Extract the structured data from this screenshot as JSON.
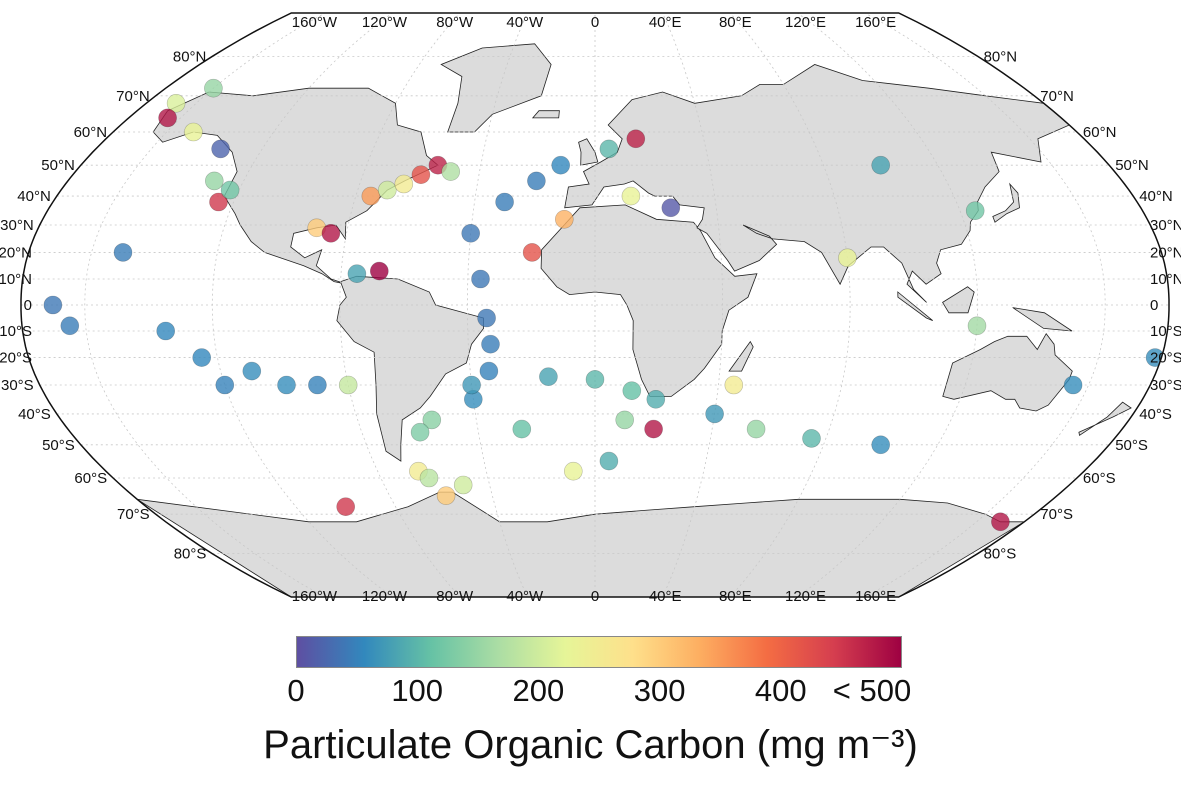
{
  "map": {
    "projection": "Robinson",
    "top_lon_labels": [
      "160°W",
      "120°W",
      "80°W",
      "40°W",
      "0",
      "40°E",
      "80°E",
      "120°E",
      "160°E"
    ],
    "bottom_lon_labels": [
      "160°W",
      "120°W",
      "80°W",
      "40°W",
      "0",
      "40°E",
      "80°E",
      "120°E",
      "160°E"
    ],
    "left_lat_labels": [
      "80°N",
      "70°N",
      "60°N",
      "50°N",
      "40°N",
      "30°N",
      "20°N",
      "10°N",
      "0",
      "10°S",
      "20°S",
      "30°S",
      "40°S",
      "50°S",
      "60°S",
      "70°S",
      "80°S"
    ],
    "right_lat_labels": [
      "80°N",
      "70°N",
      "60°N",
      "50°N",
      "40°N",
      "30°N",
      "20°N",
      "10°N",
      "0",
      "10°S",
      "20°S",
      "30°S",
      "40°S",
      "50°S",
      "60°S",
      "70°S",
      "80°S"
    ],
    "land_color": "#dcdcdc",
    "ocean_color": "#ffffff",
    "grid_color": "#c8c8c8",
    "observations": [
      {
        "lon": -40,
        "lat": 27,
        "poc": 40
      },
      {
        "lon": -30,
        "lat": 38,
        "poc": 45
      },
      {
        "lon": -20,
        "lat": 45,
        "poc": 45
      },
      {
        "lon": -12,
        "lat": 50,
        "poc": 55
      },
      {
        "lon": -36,
        "lat": 10,
        "poc": 40
      },
      {
        "lon": -34,
        "lat": -5,
        "poc": 40
      },
      {
        "lon": -33,
        "lat": -15,
        "poc": 45
      },
      {
        "lon": -34,
        "lat": -25,
        "poc": 50
      },
      {
        "lon": -40,
        "lat": -35,
        "poc": 60
      },
      {
        "lon": -55,
        "lat": -42,
        "poc": 140
      },
      {
        "lon": -60,
        "lat": -46,
        "poc": 130
      },
      {
        "lon": -65,
        "lat": -58,
        "poc": 250
      },
      {
        "lon": -62,
        "lat": -60,
        "poc": 180
      },
      {
        "lon": -15,
        "lat": -27,
        "poc": 80
      },
      {
        "lon": 0,
        "lat": -28,
        "poc": 100
      },
      {
        "lon": 12,
        "lat": -32,
        "poc": 110
      },
      {
        "lon": 20,
        "lat": -35,
        "poc": 90
      },
      {
        "lon": 10,
        "lat": -42,
        "poc": 150
      },
      {
        "lon": 5,
        "lat": -55,
        "poc": 90
      },
      {
        "lon": 40,
        "lat": -40,
        "poc": 70
      },
      {
        "lon": 55,
        "lat": -45,
        "poc": 150
      },
      {
        "lon": 75,
        "lat": -48,
        "poc": 100
      },
      {
        "lon": 100,
        "lat": -50,
        "poc": 60
      },
      {
        "lon": -150,
        "lat": 20,
        "poc": 45
      },
      {
        "lon": -170,
        "lat": 0,
        "poc": 40
      },
      {
        "lon": -165,
        "lat": -8,
        "poc": 45
      },
      {
        "lon": -120,
        "lat": -30,
        "poc": 50
      },
      {
        "lon": -100,
        "lat": -30,
        "poc": 60
      },
      {
        "lon": -90,
        "lat": -30,
        "poc": 50
      },
      {
        "lon": -80,
        "lat": -30,
        "poc": 190
      },
      {
        "lon": -125,
        "lat": -20,
        "poc": 55
      },
      {
        "lon": -130,
        "lat": 45,
        "poc": 150
      },
      {
        "lon": -125,
        "lat": 38,
        "poc": 450
      },
      {
        "lon": -123,
        "lat": 42,
        "poc": 120
      },
      {
        "lon": -90,
        "lat": 29,
        "poc": 300
      },
      {
        "lon": -85,
        "lat": 27,
        "poc": 480
      },
      {
        "lon": -75,
        "lat": 40,
        "poc": 350
      },
      {
        "lon": -70,
        "lat": 42,
        "poc": 200
      },
      {
        "lon": -60,
        "lat": 47,
        "poc": 420
      },
      {
        "lon": -55,
        "lat": 50,
        "poc": 470
      },
      {
        "lon": -50,
        "lat": 48,
        "poc": 170
      },
      {
        "lon": -65,
        "lat": 44,
        "poc": 250
      },
      {
        "lon": -168,
        "lat": 68,
        "poc": 210
      },
      {
        "lon": -160,
        "lat": 72,
        "poc": 150
      },
      {
        "lon": -165,
        "lat": 64,
        "poc": 480
      },
      {
        "lon": -150,
        "lat": 60,
        "poc": 230
      },
      {
        "lon": -135,
        "lat": 55,
        "poc": 20
      },
      {
        "lon": 5,
        "lat": 55,
        "poc": 100
      },
      {
        "lon": 15,
        "lat": 58,
        "poc": 470
      },
      {
        "lon": 12,
        "lat": 40,
        "poc": 230
      },
      {
        "lon": 25,
        "lat": 36,
        "poc": 10
      },
      {
        "lon": 80,
        "lat": 18,
        "poc": 230
      },
      {
        "lon": 125,
        "lat": 35,
        "poc": 120
      },
      {
        "lon": 120,
        "lat": -8,
        "poc": 160
      },
      {
        "lon": 155,
        "lat": -30,
        "poc": 60
      },
      {
        "lon": 178,
        "lat": -20,
        "poc": 60
      },
      {
        "lon": 170,
        "lat": -72,
        "poc": 480
      },
      {
        "lon": -100,
        "lat": -68,
        "poc": 450
      },
      {
        "lon": -68,
        "lat": 13,
        "poc": 500
      },
      {
        "lon": -75,
        "lat": 12,
        "poc": 80
      },
      {
        "lon": -58,
        "lat": -65,
        "poc": 300
      },
      {
        "lon": -50,
        "lat": -62,
        "poc": 200
      },
      {
        "lon": -20,
        "lat": 20,
        "poc": 420
      },
      {
        "lon": -40,
        "lat": -30,
        "poc": 70
      },
      {
        "lon": -25,
        "lat": -45,
        "poc": 110
      },
      {
        "lon": -8,
        "lat": -58,
        "poc": 230
      },
      {
        "lon": -10,
        "lat": 32,
        "poc": 330
      },
      {
        "lon": 20,
        "lat": -45,
        "poc": 480
      },
      {
        "lon": 100,
        "lat": 50,
        "poc": 80
      },
      {
        "lon": 45,
        "lat": -30,
        "poc": 250
      },
      {
        "lon": -135,
        "lat": -10,
        "poc": 55
      },
      {
        "lon": -110,
        "lat": -25,
        "poc": 60
      }
    ]
  },
  "colorbar": {
    "colors": [
      "#5e4fa2",
      "#3288bd",
      "#66c2a5",
      "#abdda4",
      "#e6f598",
      "#fee08b",
      "#fdae61",
      "#f46d43",
      "#d53e4f",
      "#9e0142"
    ],
    "min": 0,
    "max": 500,
    "tick_labels": [
      "0",
      "100",
      "200",
      "300",
      "400",
      "< 500"
    ],
    "title": "Particulate Organic Carbon (mg m⁻³)"
  }
}
